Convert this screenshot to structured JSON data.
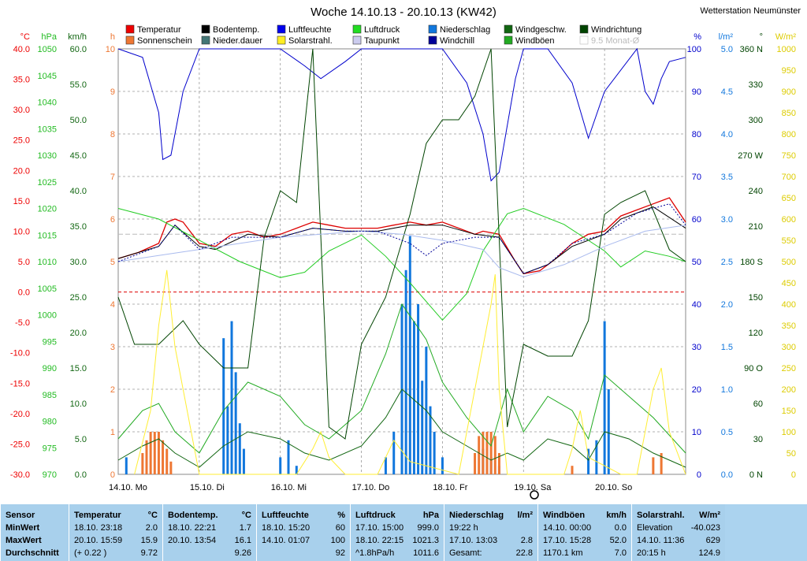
{
  "title": "Woche 14.10.13 - 20.10.13 (KW42)",
  "station": "Wetterstation Neumünster",
  "colors": {
    "temperatur": "#dd0000",
    "bodentemp": "#000000",
    "luftfeuchte": "#0000cc",
    "luftdruck": "#22cc22",
    "niederschlag": "#1177dd",
    "windgeschw": "#116611",
    "windrichtung": "#004400",
    "sonnenschein": "#ee7733",
    "niederdauer": "#447777",
    "solarstrahl": "#ffee33",
    "taupunkt": "#aabbee",
    "windchill": "#000099",
    "windboeen": "#22aa22",
    "grid": "#999999",
    "zero": "#dd0000"
  },
  "legend": [
    {
      "label": "Temperatur",
      "color": "#ee0000"
    },
    {
      "label": "Bodentemp.",
      "color": "#000000"
    },
    {
      "label": "Luftfeuchte",
      "color": "#0000ee"
    },
    {
      "label": "Luftdruck",
      "color": "#22dd22"
    },
    {
      "label": "Niederschlag",
      "color": "#1177dd"
    },
    {
      "label": "Windgeschw.",
      "color": "#116611"
    },
    {
      "label": "Windrichtung",
      "color": "#004400"
    },
    {
      "label": "Sonnenschein",
      "color": "#ee7733"
    },
    {
      "label": "Nieder.dauer",
      "color": "#447777"
    },
    {
      "label": "Solarstrahl.",
      "color": "#ffee22"
    },
    {
      "label": "Taupunkt",
      "color": "#ccccee"
    },
    {
      "label": "Windchill",
      "color": "#000099"
    },
    {
      "label": "Windböen",
      "color": "#22aa22"
    },
    {
      "label": "9.5 Monat-Ø",
      "color": "#ffffff",
      "muted": true
    }
  ],
  "axes": {
    "temp": {
      "unit": "°C",
      "color": "#ee0000",
      "ticks": [
        "40.0",
        "35.0",
        "30.0",
        "25.0",
        "20.0",
        "15.0",
        "10.0",
        "5.0",
        "0.0",
        "-5.0",
        "-10.0",
        "-15.0",
        "-20.0",
        "-25.0",
        "-30.0"
      ]
    },
    "hpa": {
      "unit": "hPa",
      "color": "#22bb22",
      "ticks": [
        "1050",
        "1045",
        "1040",
        "1035",
        "1030",
        "1025",
        "1020",
        "1015",
        "1010",
        "1005",
        "1000",
        "995",
        "990",
        "985",
        "980",
        "975",
        "970"
      ]
    },
    "kmh": {
      "unit": "km/h",
      "color": "#116611",
      "ticks": [
        "60.0",
        "55.0",
        "50.0",
        "45.0",
        "40.0",
        "35.0",
        "30.0",
        "25.0",
        "20.0",
        "15.0",
        "10.0",
        "5.0",
        "0.0"
      ]
    },
    "h": {
      "unit": "h",
      "color": "#ee7733",
      "ticks": [
        "10",
        "9",
        "8",
        "7",
        "6",
        "5",
        "4",
        "3",
        "2",
        "1",
        "0"
      ]
    },
    "pct": {
      "unit": "%",
      "color": "#0000cc",
      "ticks": [
        "100",
        "90",
        "80",
        "70",
        "60",
        "50",
        "40",
        "30",
        "20",
        "10",
        "0"
      ]
    },
    "lm2": {
      "unit": "l/m²",
      "color": "#1177dd",
      "ticks": [
        "5.0",
        "4.5",
        "4.0",
        "3.5",
        "3.0",
        "2.5",
        "2.0",
        "1.5",
        "1.0",
        "0.5",
        "0.0"
      ]
    },
    "deg": {
      "unit": "°",
      "color": "#004400",
      "ticks": [
        "360 N",
        "330",
        "300",
        "270 W",
        "240",
        "210",
        "180 S",
        "150",
        "120",
        "90 O",
        "60",
        "30",
        "0 N"
      ]
    },
    "wm2": {
      "unit": "W/m²",
      "color": "#ddcc00",
      "ticks": [
        "1000",
        "950",
        "900",
        "850",
        "800",
        "750",
        "700",
        "650",
        "600",
        "550",
        "500",
        "450",
        "400",
        "350",
        "300",
        "250",
        "200",
        "150",
        "100",
        "50",
        "0"
      ]
    }
  },
  "days": [
    "14.10. Mo",
    "15.10. Di",
    "16.10. Mi",
    "17.10. Do",
    "18.10. Fr",
    "19.10. Sa",
    "20.10. So"
  ],
  "chart_data": {
    "type": "line",
    "title": "Woche 14.10.13 - 20.10.13 (KW42)",
    "x_unit": "day (0 = 14.10. 00:00, 7 = 21.10. 00:00)",
    "series": [
      {
        "name": "Temperatur",
        "unit": "°C",
        "x": [
          0,
          0.25,
          0.5,
          0.6,
          0.7,
          0.8,
          1.0,
          1.2,
          1.4,
          1.6,
          1.8,
          2.0,
          2.2,
          2.4,
          2.6,
          2.8,
          3.0,
          3.2,
          3.4,
          3.6,
          3.8,
          4.0,
          4.2,
          4.4,
          4.5,
          4.7,
          4.9,
          5.0,
          5.2,
          5.4,
          5.6,
          5.8,
          6.0,
          6.2,
          6.4,
          6.6,
          6.8,
          7.0
        ],
        "values": [
          5.5,
          6.5,
          8.0,
          11.5,
          12.0,
          11.5,
          8.0,
          7.5,
          9.5,
          10.0,
          9.0,
          9.5,
          10.5,
          11.5,
          11.0,
          10.5,
          10.5,
          10.5,
          11.0,
          11.5,
          11.0,
          11.5,
          10.5,
          9.5,
          10.0,
          9.5,
          5.0,
          3.0,
          3.5,
          5.5,
          8.0,
          9.5,
          10.0,
          12.5,
          13.5,
          14.5,
          15.5,
          11.5
        ]
      },
      {
        "name": "Bodentemp.",
        "unit": "°C",
        "x": [
          0,
          0.5,
          0.7,
          1.0,
          1.2,
          1.6,
          2.0,
          2.4,
          2.8,
          3.2,
          3.6,
          4.0,
          4.4,
          4.7,
          5.0,
          5.3,
          5.6,
          6.0,
          6.2,
          6.6,
          7.0
        ],
        "values": [
          5.5,
          7.5,
          11.0,
          7.5,
          7.0,
          9.5,
          9.0,
          10.5,
          10.0,
          10.0,
          11.0,
          11.0,
          9.5,
          9.0,
          3.0,
          4.5,
          7.5,
          9.5,
          12.0,
          14.0,
          10.5
        ]
      },
      {
        "name": "Luftfeuchte",
        "unit": "%",
        "x": [
          0,
          0.3,
          0.5,
          0.55,
          0.65,
          0.8,
          1.0,
          1.5,
          2.0,
          2.3,
          2.5,
          2.8,
          3.0,
          3.5,
          4.0,
          4.3,
          4.5,
          4.6,
          4.7,
          4.9,
          5.0,
          5.3,
          5.6,
          5.8,
          6.0,
          6.4,
          6.5,
          6.6,
          6.7,
          6.8,
          7.0
        ],
        "values": [
          100,
          98,
          85,
          74,
          75,
          90,
          100,
          100,
          100,
          96,
          93,
          97,
          100,
          100,
          100,
          92,
          80,
          69,
          71,
          93,
          100,
          100,
          92,
          79,
          90,
          100,
          90,
          87,
          93,
          97,
          98
        ]
      },
      {
        "name": "Luftdruck",
        "unit": "hPa",
        "x": [
          0,
          0.5,
          1.0,
          1.5,
          2.0,
          2.3,
          2.6,
          3.0,
          3.3,
          3.6,
          4.0,
          4.3,
          4.5,
          4.8,
          5.0,
          5.5,
          6.0,
          6.2,
          6.5,
          6.8,
          7.0
        ],
        "values": [
          1020,
          1018,
          1014,
          1010,
          1007,
          1008,
          1012,
          1015,
          1011,
          1006,
          999,
          1004,
          1012,
          1019,
          1020,
          1017,
          1012,
          1009,
          1012,
          1011,
          1010
        ]
      },
      {
        "name": "Niederschlag",
        "unit": "l/m²",
        "x": [
          0.1,
          1.3,
          1.35,
          1.4,
          1.45,
          1.5,
          1.55,
          2.0,
          2.1,
          2.2,
          3.3,
          3.4,
          3.5,
          3.55,
          3.6,
          3.65,
          3.7,
          3.75,
          3.8,
          3.85,
          3.9,
          4.0,
          4.5,
          4.6,
          4.7,
          5.8,
          5.9,
          6.0,
          6.05
        ],
        "values": [
          0.2,
          1.6,
          0.8,
          1.8,
          1.2,
          0.6,
          0.3,
          0.2,
          0.4,
          0.1,
          0.2,
          0.5,
          2.0,
          2.4,
          2.8,
          1.8,
          2.0,
          1.1,
          1.5,
          0.8,
          0.5,
          0.2,
          0.3,
          0.2,
          0.1,
          0.3,
          0.4,
          1.8,
          1.0
        ]
      },
      {
        "name": "Windgeschw.",
        "unit": "km/h",
        "x": [
          0,
          0.3,
          0.5,
          0.7,
          1.0,
          1.3,
          1.6,
          2.0,
          2.3,
          2.6,
          3.0,
          3.3,
          3.5,
          3.8,
          4.0,
          4.3,
          4.6,
          4.8,
          5.0,
          5.3,
          5.6,
          5.8,
          6.0,
          6.3,
          6.6,
          7.0
        ],
        "values": [
          2,
          4,
          5,
          3,
          1,
          4,
          6,
          5,
          3,
          2,
          4,
          8,
          12,
          9,
          6,
          4,
          2,
          3,
          2,
          5,
          4,
          2,
          6,
          5,
          3,
          1
        ]
      },
      {
        "name": "Windböen",
        "unit": "km/h",
        "x": [
          0,
          0.3,
          0.5,
          0.7,
          1.0,
          1.3,
          1.6,
          2.0,
          2.3,
          2.6,
          3.0,
          3.3,
          3.5,
          3.8,
          4.0,
          4.3,
          4.6,
          4.8,
          5.0,
          5.3,
          5.6,
          5.8,
          6.0,
          6.3,
          6.6,
          7.0
        ],
        "values": [
          5,
          9,
          10,
          6,
          3,
          9,
          13,
          11,
          7,
          5,
          9,
          17,
          24,
          19,
          13,
          8,
          4,
          12,
          6,
          11,
          9,
          5,
          14,
          11,
          8,
          3
        ]
      },
      {
        "name": "Windrichtung",
        "unit": "°",
        "x": [
          0,
          0.2,
          0.5,
          0.8,
          1.0,
          1.3,
          1.6,
          1.8,
          2.0,
          2.2,
          2.4,
          2.6,
          2.8,
          3.0,
          3.3,
          3.6,
          3.8,
          4.0,
          4.2,
          4.4,
          4.6,
          4.8,
          5.0,
          5.3,
          5.6,
          5.8,
          6.0,
          6.2,
          6.5,
          6.8,
          7.0
        ],
        "values": [
          150,
          110,
          110,
          130,
          110,
          90,
          90,
          200,
          240,
          230,
          360,
          40,
          30,
          110,
          150,
          220,
          280,
          300,
          300,
          320,
          360,
          40,
          110,
          100,
          100,
          130,
          220,
          230,
          240,
          190,
          180
        ]
      },
      {
        "name": "Sonnenschein",
        "unit": "h",
        "x": [
          0.3,
          0.35,
          0.4,
          0.45,
          0.5,
          0.55,
          0.6,
          0.65,
          4.4,
          4.45,
          4.5,
          4.55,
          4.6,
          4.65,
          4.7,
          5.6,
          6.6,
          6.7
        ],
        "values": [
          0.5,
          0.8,
          1.0,
          1.0,
          1.0,
          0.8,
          0.6,
          0.3,
          0.5,
          0.9,
          1.0,
          1.0,
          1.0,
          0.9,
          0.5,
          0.2,
          0.4,
          0.5
        ]
      },
      {
        "name": "Solarstrahl.",
        "unit": "W/m²",
        "x": [
          0.2,
          0.4,
          0.5,
          0.6,
          0.7,
          1.0,
          2.2,
          2.4,
          2.5,
          2.6,
          2.8,
          3.2,
          3.4,
          3.6,
          4.2,
          4.4,
          4.6,
          4.65,
          4.7,
          4.8,
          5.0,
          5.5,
          5.6,
          5.7,
          5.8,
          6.2,
          6.4,
          6.6,
          6.7,
          6.8,
          7.0
        ],
        "values": [
          0,
          150,
          350,
          480,
          300,
          0,
          0,
          60,
          100,
          40,
          0,
          0,
          80,
          30,
          0,
          200,
          400,
          470,
          200,
          0,
          0,
          0,
          60,
          150,
          40,
          0,
          0,
          200,
          250,
          100,
          0
        ]
      },
      {
        "name": "Taupunkt",
        "unit": "°C",
        "x": [
          0,
          0.5,
          1.0,
          1.5,
          2.0,
          2.5,
          3.0,
          3.5,
          4.0,
          4.5,
          4.7,
          5.0,
          5.5,
          6.0,
          6.5,
          7.0
        ],
        "values": [
          5.0,
          6.0,
          7.0,
          8.0,
          9.0,
          9.5,
          10.0,
          9.5,
          8.5,
          7.0,
          4.0,
          2.5,
          4.5,
          7.5,
          10.0,
          11.0
        ]
      },
      {
        "name": "Windchill",
        "unit": "°C",
        "x": [
          0,
          0.5,
          0.7,
          1.0,
          1.4,
          2.0,
          2.4,
          2.8,
          3.2,
          3.6,
          3.8,
          4.0,
          4.4,
          4.7,
          5.0,
          5.3,
          5.6,
          6.0,
          6.4,
          6.8,
          7.0
        ],
        "values": [
          5.0,
          7.5,
          11.0,
          7.0,
          9.0,
          9.0,
          10.5,
          10.0,
          10.0,
          8.0,
          6.0,
          8.0,
          9.0,
          9.0,
          3.0,
          4.5,
          8.0,
          9.5,
          13.0,
          14.5,
          11.0
        ]
      }
    ]
  },
  "stats": {
    "row_labels": [
      "Sensor",
      "MinWert",
      "MaxWert",
      "Durchschnitt"
    ],
    "columns": [
      {
        "name": "Temperatur",
        "unit": "°C",
        "rows": [
          [
            "18.10.  23:18",
            "2.0"
          ],
          [
            "20.10.  15:59",
            "15.9"
          ],
          [
            "(+ 0.22 )",
            "9.72"
          ]
        ]
      },
      {
        "name": "Bodentemp.",
        "unit": "°C",
        "rows": [
          [
            "18.10.  22:21",
            "1.7"
          ],
          [
            "20.10.  13:54",
            "16.1"
          ],
          [
            "",
            "9.26"
          ]
        ]
      },
      {
        "name": "Luftfeuchte",
        "unit": "%",
        "rows": [
          [
            "18.10.  15:20",
            "60"
          ],
          [
            "14.10.  01:07",
            "100"
          ],
          [
            "",
            "92"
          ]
        ]
      },
      {
        "name": "Luftdruck",
        "unit": "hPa",
        "rows": [
          [
            "17.10.  15:00",
            "999.0"
          ],
          [
            "18.10.  22:15",
            "1021.3"
          ],
          [
            "^1.8hPa/h",
            "1011.6"
          ]
        ]
      },
      {
        "name": "Niederschlag",
        "unit": "l/m²",
        "rows": [
          [
            "19:22 h",
            ""
          ],
          [
            "17.10.  13:03",
            "2.8"
          ],
          [
            "Gesamt:",
            "22.8"
          ]
        ]
      },
      {
        "name": "Windböen",
        "unit": "km/h",
        "rows": [
          [
            "14.10.  00:00",
            "0.0"
          ],
          [
            "17.10.  15:28",
            "52.0"
          ],
          [
            "1170.1 km",
            "7.0"
          ]
        ]
      },
      {
        "name": "Solarstrahl.",
        "unit": "W/m²",
        "rows": [
          [
            "Elevation",
            "-40.023"
          ],
          [
            "14.10.  11:36",
            "629"
          ],
          [
            "20:15 h",
            "124.9"
          ]
        ]
      }
    ]
  }
}
